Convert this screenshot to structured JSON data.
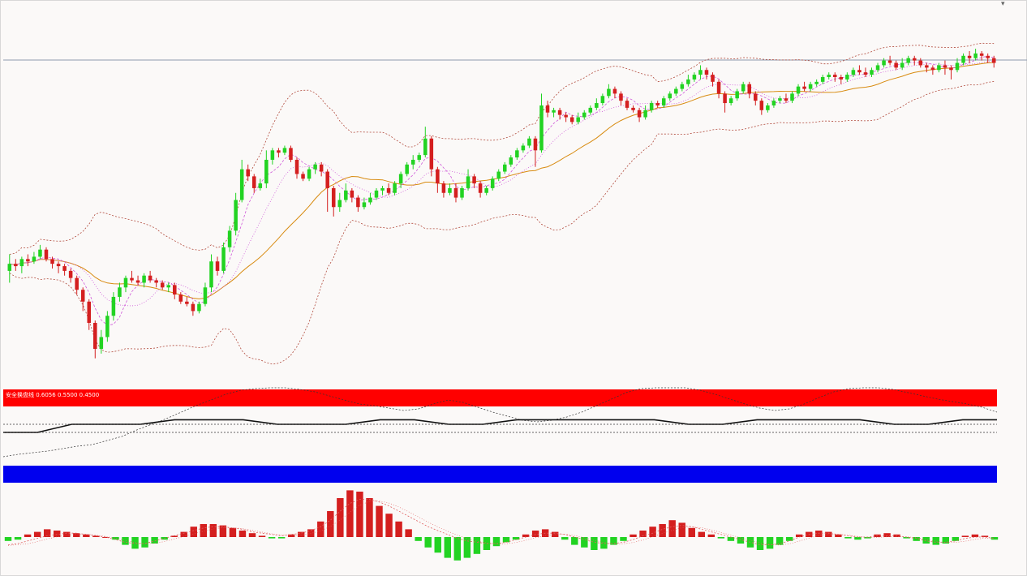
{
  "colors": {
    "background": "#fbf9f8",
    "bull_candle": "#22d322",
    "bear_candle": "#d41f1f",
    "bollinger_bands": "#b14a3c",
    "moving_average_fast": "#cf5ad9",
    "moving_average_slow": "#d88b10",
    "oscillator_band_top": "#ff0000",
    "oscillator_band_bottom": "#0000ee",
    "oscillator_step_line": "#111111",
    "signal_line": "#e06060",
    "histogram_positive": "#d41f1f",
    "histogram_negative": "#22d322",
    "horizontal_line": "#8f9aae"
  },
  "icons": {
    "menu": "chevron-down-icon"
  },
  "indicator_label": "安全换盘线 0.6056 0.5500 0.4500",
  "chart_data": [
    {
      "type": "candlestick",
      "panel": "price",
      "title": "",
      "xlabel": "",
      "ylabel": "",
      "overlays": [
        "bollinger-bands",
        "moving-averages"
      ],
      "grid": false,
      "candles": [
        [
          45,
          48,
          40,
          52
        ],
        [
          48,
          47,
          45,
          50
        ],
        [
          47,
          50,
          44,
          51
        ],
        [
          50,
          49,
          47,
          52
        ],
        [
          49,
          51,
          48,
          53
        ],
        [
          51,
          54,
          50,
          56
        ],
        [
          54,
          50,
          49,
          55
        ],
        [
          50,
          48,
          46,
          51
        ],
        [
          48,
          47,
          44,
          49
        ],
        [
          47,
          45,
          43,
          48
        ],
        [
          45,
          42,
          40,
          46
        ],
        [
          42,
          37,
          35,
          43
        ],
        [
          37,
          32,
          28,
          38
        ],
        [
          32,
          23,
          20,
          33
        ],
        [
          23,
          12,
          8,
          24
        ],
        [
          12,
          17,
          10,
          20
        ],
        [
          17,
          26,
          15,
          28
        ],
        [
          26,
          34,
          24,
          36
        ],
        [
          34,
          38,
          32,
          40
        ],
        [
          38,
          42,
          36,
          43
        ],
        [
          42,
          41,
          40,
          45
        ],
        [
          41,
          40,
          39,
          43
        ],
        [
          40,
          43,
          38,
          44
        ],
        [
          43,
          41,
          40,
          45
        ],
        [
          41,
          40,
          38,
          42
        ],
        [
          40,
          38,
          37,
          41
        ],
        [
          38,
          39,
          36,
          40
        ],
        [
          39,
          35,
          33,
          40
        ],
        [
          35,
          32,
          31,
          36
        ],
        [
          32,
          31,
          30,
          34
        ],
        [
          31,
          28,
          26,
          32
        ],
        [
          28,
          31,
          27,
          32
        ],
        [
          31,
          38,
          30,
          40
        ],
        [
          38,
          49,
          36,
          52
        ],
        [
          49,
          45,
          43,
          51
        ],
        [
          45,
          55,
          44,
          57
        ],
        [
          55,
          62,
          53,
          64
        ],
        [
          62,
          75,
          60,
          78
        ],
        [
          75,
          88,
          74,
          92
        ],
        [
          88,
          85,
          83,
          90
        ],
        [
          85,
          80,
          78,
          86
        ],
        [
          80,
          82,
          79,
          84
        ],
        [
          82,
          92,
          80,
          96
        ],
        [
          92,
          96,
          90,
          97
        ],
        [
          96,
          95,
          93,
          97
        ],
        [
          95,
          97,
          94,
          98
        ],
        [
          97,
          92,
          91,
          98
        ],
        [
          92,
          86,
          84,
          93
        ],
        [
          86,
          84,
          83,
          87
        ],
        [
          84,
          88,
          83,
          89
        ],
        [
          88,
          90,
          86,
          91
        ],
        [
          90,
          87,
          85,
          91
        ],
        [
          87,
          80,
          70,
          88
        ],
        [
          80,
          72,
          68,
          81
        ],
        [
          72,
          75,
          70,
          78
        ],
        [
          75,
          79,
          74,
          82
        ],
        [
          79,
          76,
          74,
          80
        ],
        [
          76,
          72,
          70,
          77
        ],
        [
          72,
          74,
          71,
          76
        ],
        [
          74,
          76,
          73,
          78
        ],
        [
          76,
          79,
          75,
          80
        ],
        [
          79,
          80,
          77,
          81
        ],
        [
          80,
          78,
          77,
          82
        ],
        [
          78,
          82,
          77,
          83
        ],
        [
          82,
          86,
          80,
          87
        ],
        [
          86,
          90,
          85,
          91
        ],
        [
          90,
          92,
          88,
          94
        ],
        [
          92,
          94,
          91,
          95
        ],
        [
          94,
          101,
          93,
          106
        ],
        [
          101,
          88,
          85,
          102
        ],
        [
          88,
          82,
          78,
          89
        ],
        [
          82,
          78,
          76,
          83
        ],
        [
          78,
          80,
          77,
          82
        ],
        [
          80,
          76,
          74,
          82
        ],
        [
          76,
          80,
          75,
          81
        ],
        [
          80,
          85,
          79,
          88
        ],
        [
          85,
          82,
          80,
          86
        ],
        [
          82,
          78,
          76,
          83
        ],
        [
          78,
          80,
          77,
          81
        ],
        [
          80,
          84,
          79,
          85
        ],
        [
          84,
          87,
          83,
          88
        ],
        [
          87,
          90,
          86,
          91
        ],
        [
          90,
          93,
          89,
          94
        ],
        [
          93,
          96,
          92,
          97
        ],
        [
          96,
          98,
          95,
          99
        ],
        [
          98,
          101,
          97,
          102
        ],
        [
          101,
          96,
          89,
          102
        ],
        [
          96,
          115,
          95,
          120
        ],
        [
          115,
          112,
          110,
          117
        ],
        [
          112,
          113,
          110,
          114
        ],
        [
          113,
          111,
          109,
          114
        ],
        [
          111,
          110,
          108,
          112
        ],
        [
          110,
          108,
          107,
          111
        ],
        [
          108,
          110,
          107,
          112
        ],
        [
          110,
          112,
          109,
          113
        ],
        [
          112,
          114,
          111,
          115
        ],
        [
          114,
          116,
          113,
          118
        ],
        [
          116,
          119,
          115,
          120
        ],
        [
          119,
          122,
          118,
          124
        ],
        [
          122,
          120,
          118,
          123
        ],
        [
          120,
          117,
          115,
          121
        ],
        [
          117,
          114,
          113,
          118
        ],
        [
          114,
          113,
          112,
          115
        ],
        [
          113,
          110,
          108,
          114
        ],
        [
          110,
          113,
          109,
          115
        ],
        [
          113,
          116,
          112,
          117
        ],
        [
          116,
          115,
          114,
          117
        ],
        [
          115,
          118,
          114,
          119
        ],
        [
          118,
          120,
          117,
          121
        ],
        [
          120,
          122,
          119,
          123
        ],
        [
          122,
          124,
          121,
          125
        ],
        [
          124,
          126,
          123,
          128
        ],
        [
          126,
          128,
          125,
          129
        ],
        [
          128,
          130,
          126,
          132
        ],
        [
          130,
          128,
          126,
          131
        ],
        [
          128,
          125,
          123,
          129
        ],
        [
          125,
          120,
          118,
          126
        ],
        [
          120,
          116,
          112,
          121
        ],
        [
          116,
          118,
          115,
          119
        ],
        [
          118,
          121,
          117,
          122
        ],
        [
          121,
          124,
          120,
          125
        ],
        [
          124,
          120,
          118,
          125
        ],
        [
          120,
          117,
          115,
          121
        ],
        [
          117,
          113,
          111,
          118
        ],
        [
          113,
          115,
          112,
          116
        ],
        [
          115,
          117,
          114,
          118
        ],
        [
          117,
          118,
          116,
          119
        ],
        [
          118,
          117,
          116,
          120
        ],
        [
          117,
          120,
          116,
          121
        ],
        [
          120,
          123,
          119,
          124
        ],
        [
          123,
          122,
          121,
          125
        ],
        [
          122,
          124,
          121,
          125
        ],
        [
          124,
          125,
          123,
          126
        ],
        [
          125,
          127,
          124,
          128
        ],
        [
          127,
          128,
          126,
          129
        ],
        [
          128,
          127,
          125,
          129
        ],
        [
          127,
          126,
          124,
          128
        ],
        [
          126,
          128,
          125,
          129
        ],
        [
          128,
          130,
          127,
          131
        ],
        [
          130,
          129,
          128,
          132
        ],
        [
          129,
          128,
          127,
          131
        ],
        [
          128,
          130,
          127,
          131
        ],
        [
          130,
          132,
          129,
          133
        ],
        [
          132,
          134,
          131,
          135
        ],
        [
          134,
          133,
          132,
          136
        ],
        [
          133,
          131,
          130,
          134
        ],
        [
          131,
          133,
          130,
          135
        ],
        [
          133,
          135,
          132,
          136
        ],
        [
          135,
          134,
          132,
          136
        ],
        [
          134,
          132,
          131,
          135
        ],
        [
          132,
          131,
          129,
          133
        ],
        [
          131,
          130,
          128,
          132
        ],
        [
          130,
          132,
          129,
          133
        ],
        [
          132,
          131,
          128,
          134
        ],
        [
          131,
          130,
          126,
          132
        ],
        [
          130,
          133,
          129,
          135
        ],
        [
          133,
          136,
          132,
          137
        ],
        [
          136,
          135,
          133,
          138
        ],
        [
          135,
          137,
          134,
          139
        ],
        [
          137,
          136,
          134,
          138
        ],
        [
          136,
          135,
          133,
          137
        ],
        [
          135,
          133,
          131,
          136
        ]
      ],
      "ylim": [
        0,
        150
      ]
    },
    {
      "type": "line",
      "panel": "oscillator",
      "title": "安全换盘线",
      "values": [
        0.6056,
        0.55,
        0.45
      ],
      "ylim": [
        0,
        1
      ],
      "series": [
        {
          "values": [
            0.15,
            0.18,
            0.2,
            0.22,
            0.25,
            0.28,
            0.3,
            0.35,
            0.4,
            0.48,
            0.55,
            0.62,
            0.7,
            0.78,
            0.85,
            0.92,
            0.97,
            0.99,
            1.0,
            1.0,
            0.98,
            0.95,
            0.9,
            0.85,
            0.8,
            0.78,
            0.75,
            0.72,
            0.74,
            0.8,
            0.85,
            0.82,
            0.76,
            0.7,
            0.65,
            0.6,
            0.58,
            0.6,
            0.64,
            0.7,
            0.78,
            0.86,
            0.94,
            0.99,
            1.0,
            1.0,
            1.0,
            0.97,
            0.92,
            0.86,
            0.8,
            0.75,
            0.72,
            0.74,
            0.8,
            0.88,
            0.95,
            0.99,
            1.0,
            1.0,
            0.98,
            0.94,
            0.9,
            0.86,
            0.83,
            0.8,
            0.76,
            0.7
          ]
        },
        {
          "values": [
            0.45,
            0.45,
            0.55,
            0.55,
            0.55,
            0.6056,
            0.6056,
            0.6056,
            0.55,
            0.55,
            0.55,
            0.6056,
            0.6056,
            0.55,
            0.55,
            0.6056,
            0.6056,
            0.6056,
            0.6056,
            0.6056,
            0.55,
            0.55,
            0.6056,
            0.6056,
            0.6056,
            0.6056,
            0.55,
            0.55,
            0.6056,
            0.6056
          ]
        }
      ]
    },
    {
      "type": "bar",
      "panel": "histogram",
      "series": [
        {
          "name": "histogram",
          "values": [
            -0.3,
            -0.2,
            0.2,
            0.4,
            0.6,
            0.5,
            0.4,
            0.3,
            0.2,
            0.1,
            0.0,
            -0.2,
            -0.6,
            -0.9,
            -0.8,
            -0.5,
            -0.2,
            0.1,
            0.4,
            0.8,
            1.0,
            1.0,
            0.9,
            0.7,
            0.5,
            0.3,
            0.1,
            -0.1,
            -0.1,
            0.2,
            0.4,
            0.6,
            1.2,
            2.0,
            3.0,
            3.6,
            3.5,
            3.0,
            2.4,
            1.8,
            1.2,
            0.6,
            -0.3,
            -0.8,
            -1.2,
            -1.6,
            -1.8,
            -1.6,
            -1.3,
            -1.0,
            -0.7,
            -0.4,
            -0.2,
            0.2,
            0.5,
            0.6,
            0.4,
            -0.2,
            -0.6,
            -0.8,
            -1.0,
            -0.9,
            -0.6,
            -0.3,
            0.2,
            0.5,
            0.8,
            1.0,
            1.3,
            1.1,
            0.7,
            0.4,
            0.2,
            -0.1,
            -0.3,
            -0.5,
            -0.8,
            -1.0,
            -0.9,
            -0.6,
            -0.3,
            0.2,
            0.4,
            0.5,
            0.4,
            0.2,
            -0.1,
            -0.2,
            -0.1,
            0.2,
            0.3,
            0.2,
            -0.1,
            -0.3,
            -0.5,
            -0.6,
            -0.5,
            -0.3,
            0.1,
            0.2,
            0.1,
            -0.2
          ]
        },
        {
          "name": "signal",
          "values": [
            -0.6,
            -0.5,
            -0.3,
            -0.1,
            0.1,
            0.2,
            0.3,
            0.3,
            0.2,
            0.1,
            0.0,
            -0.2,
            -0.4,
            -0.5,
            -0.5,
            -0.3,
            -0.1,
            0.1,
            0.3,
            0.5,
            0.7,
            0.8,
            0.8,
            0.7,
            0.6,
            0.4,
            0.3,
            0.2,
            0.1,
            0.2,
            0.3,
            0.5,
            0.8,
            1.3,
            2.0,
            2.6,
            2.9,
            2.9,
            2.7,
            2.4,
            2.0,
            1.6,
            1.2,
            0.8,
            0.5,
            0.2,
            -0.1,
            -0.3,
            -0.4,
            -0.5,
            -0.5,
            -0.4,
            -0.2,
            0.0,
            0.2,
            0.3,
            0.3,
            0.2,
            0.0,
            -0.2,
            -0.4,
            -0.5,
            -0.5,
            -0.4,
            -0.2,
            0.1,
            0.3,
            0.6,
            0.8,
            0.9,
            0.8,
            0.6,
            0.4,
            0.2,
            0.0,
            -0.2,
            -0.4,
            -0.6,
            -0.6,
            -0.5,
            -0.3,
            0.0,
            0.2,
            0.3,
            0.3,
            0.2,
            0.1,
            0.0,
            0.0,
            0.1,
            0.1,
            0.1,
            0.0,
            -0.1,
            -0.3,
            -0.4,
            -0.4,
            -0.3,
            -0.1,
            0.0,
            0.0,
            -0.1
          ]
        }
      ]
    }
  ]
}
